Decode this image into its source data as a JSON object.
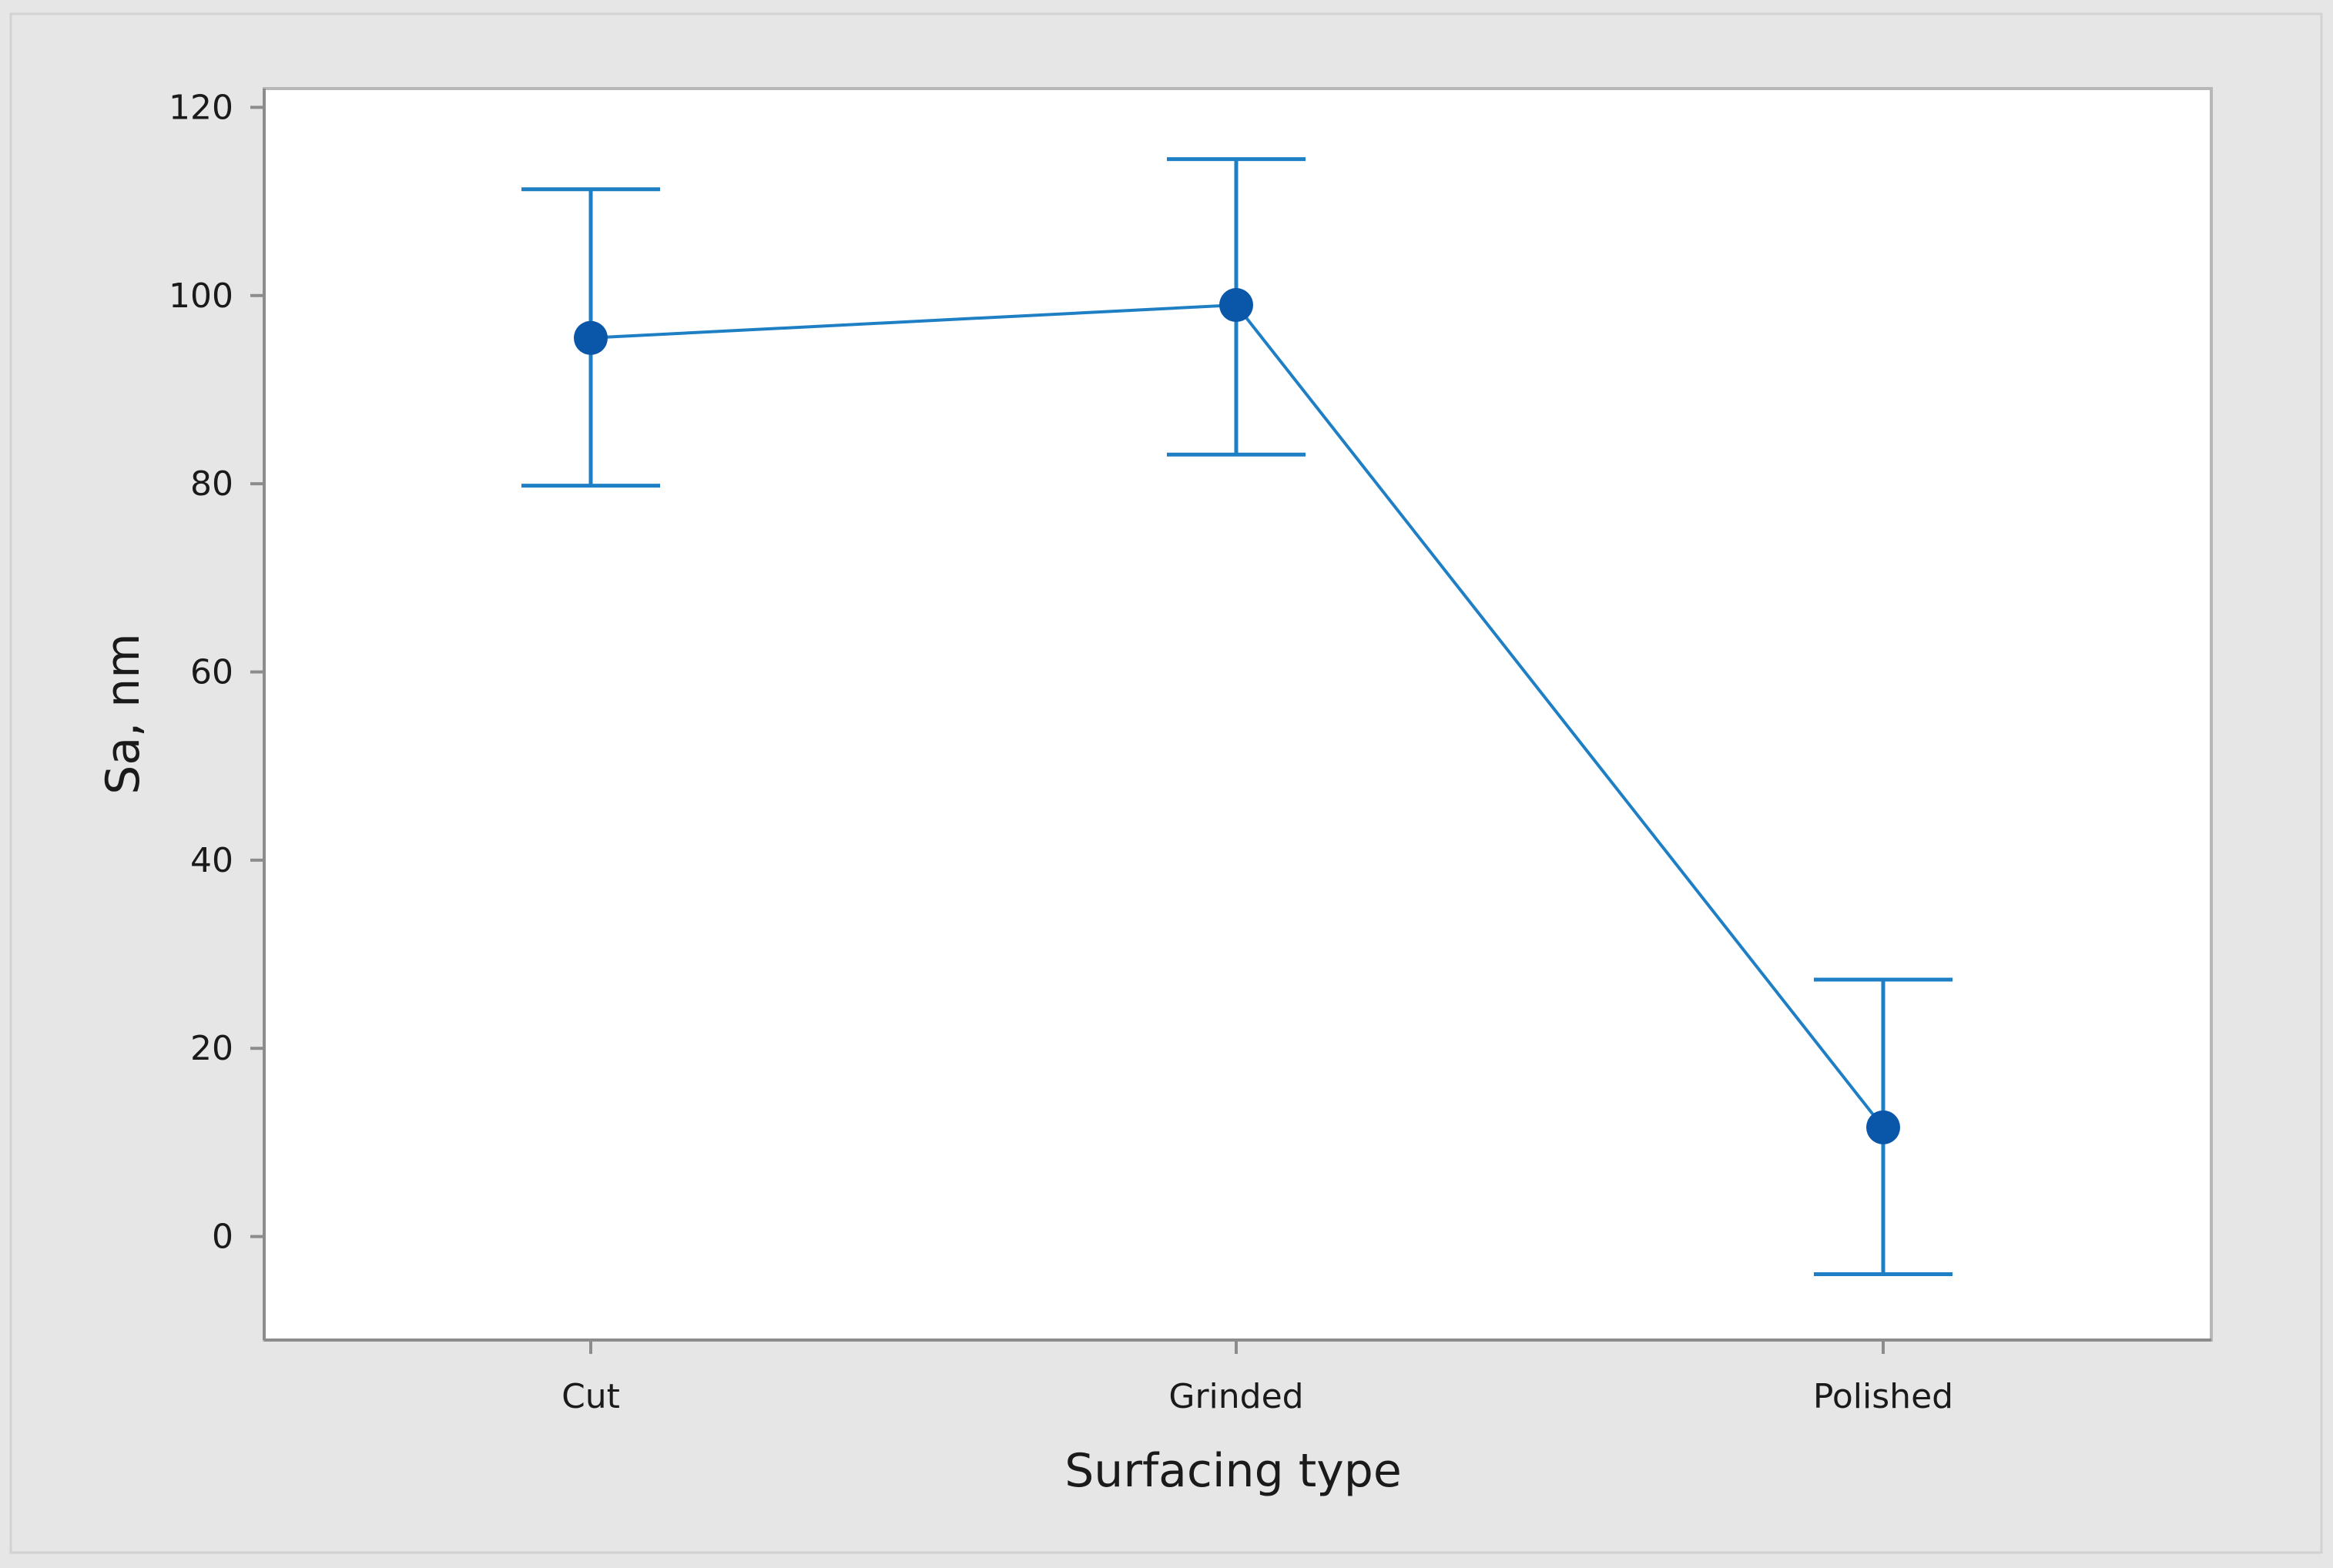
{
  "colors": {
    "outer_background": "#e6e6e6",
    "plot_background": "#ffffff",
    "frame": "#b8b8b8",
    "axis": "#8c8c8c",
    "series_line": "#1f7fc4",
    "error_bar": "#1f7fc4",
    "marker": "#0a56a8",
    "text": "#1a1a1a"
  },
  "chart_data": {
    "type": "line",
    "title": "",
    "xlabel": "Surfacing type",
    "ylabel": "Sa, nm",
    "categories": [
      "Cut",
      "Grinded",
      "Polished"
    ],
    "series": [
      {
        "values": [
          95.5,
          99,
          11.6
        ],
        "error_low": [
          79.8,
          83.1,
          -4
        ],
        "error_high": [
          111.3,
          114.5,
          27.3
        ]
      }
    ],
    "ylim": [
      -11,
      122
    ],
    "yticks": [
      0,
      20,
      40,
      60,
      80,
      100,
      120
    ],
    "ytick_labels": [
      "0",
      "20",
      "40",
      "60",
      "80",
      "100",
      "120"
    ],
    "grid": false,
    "legend": "none"
  }
}
